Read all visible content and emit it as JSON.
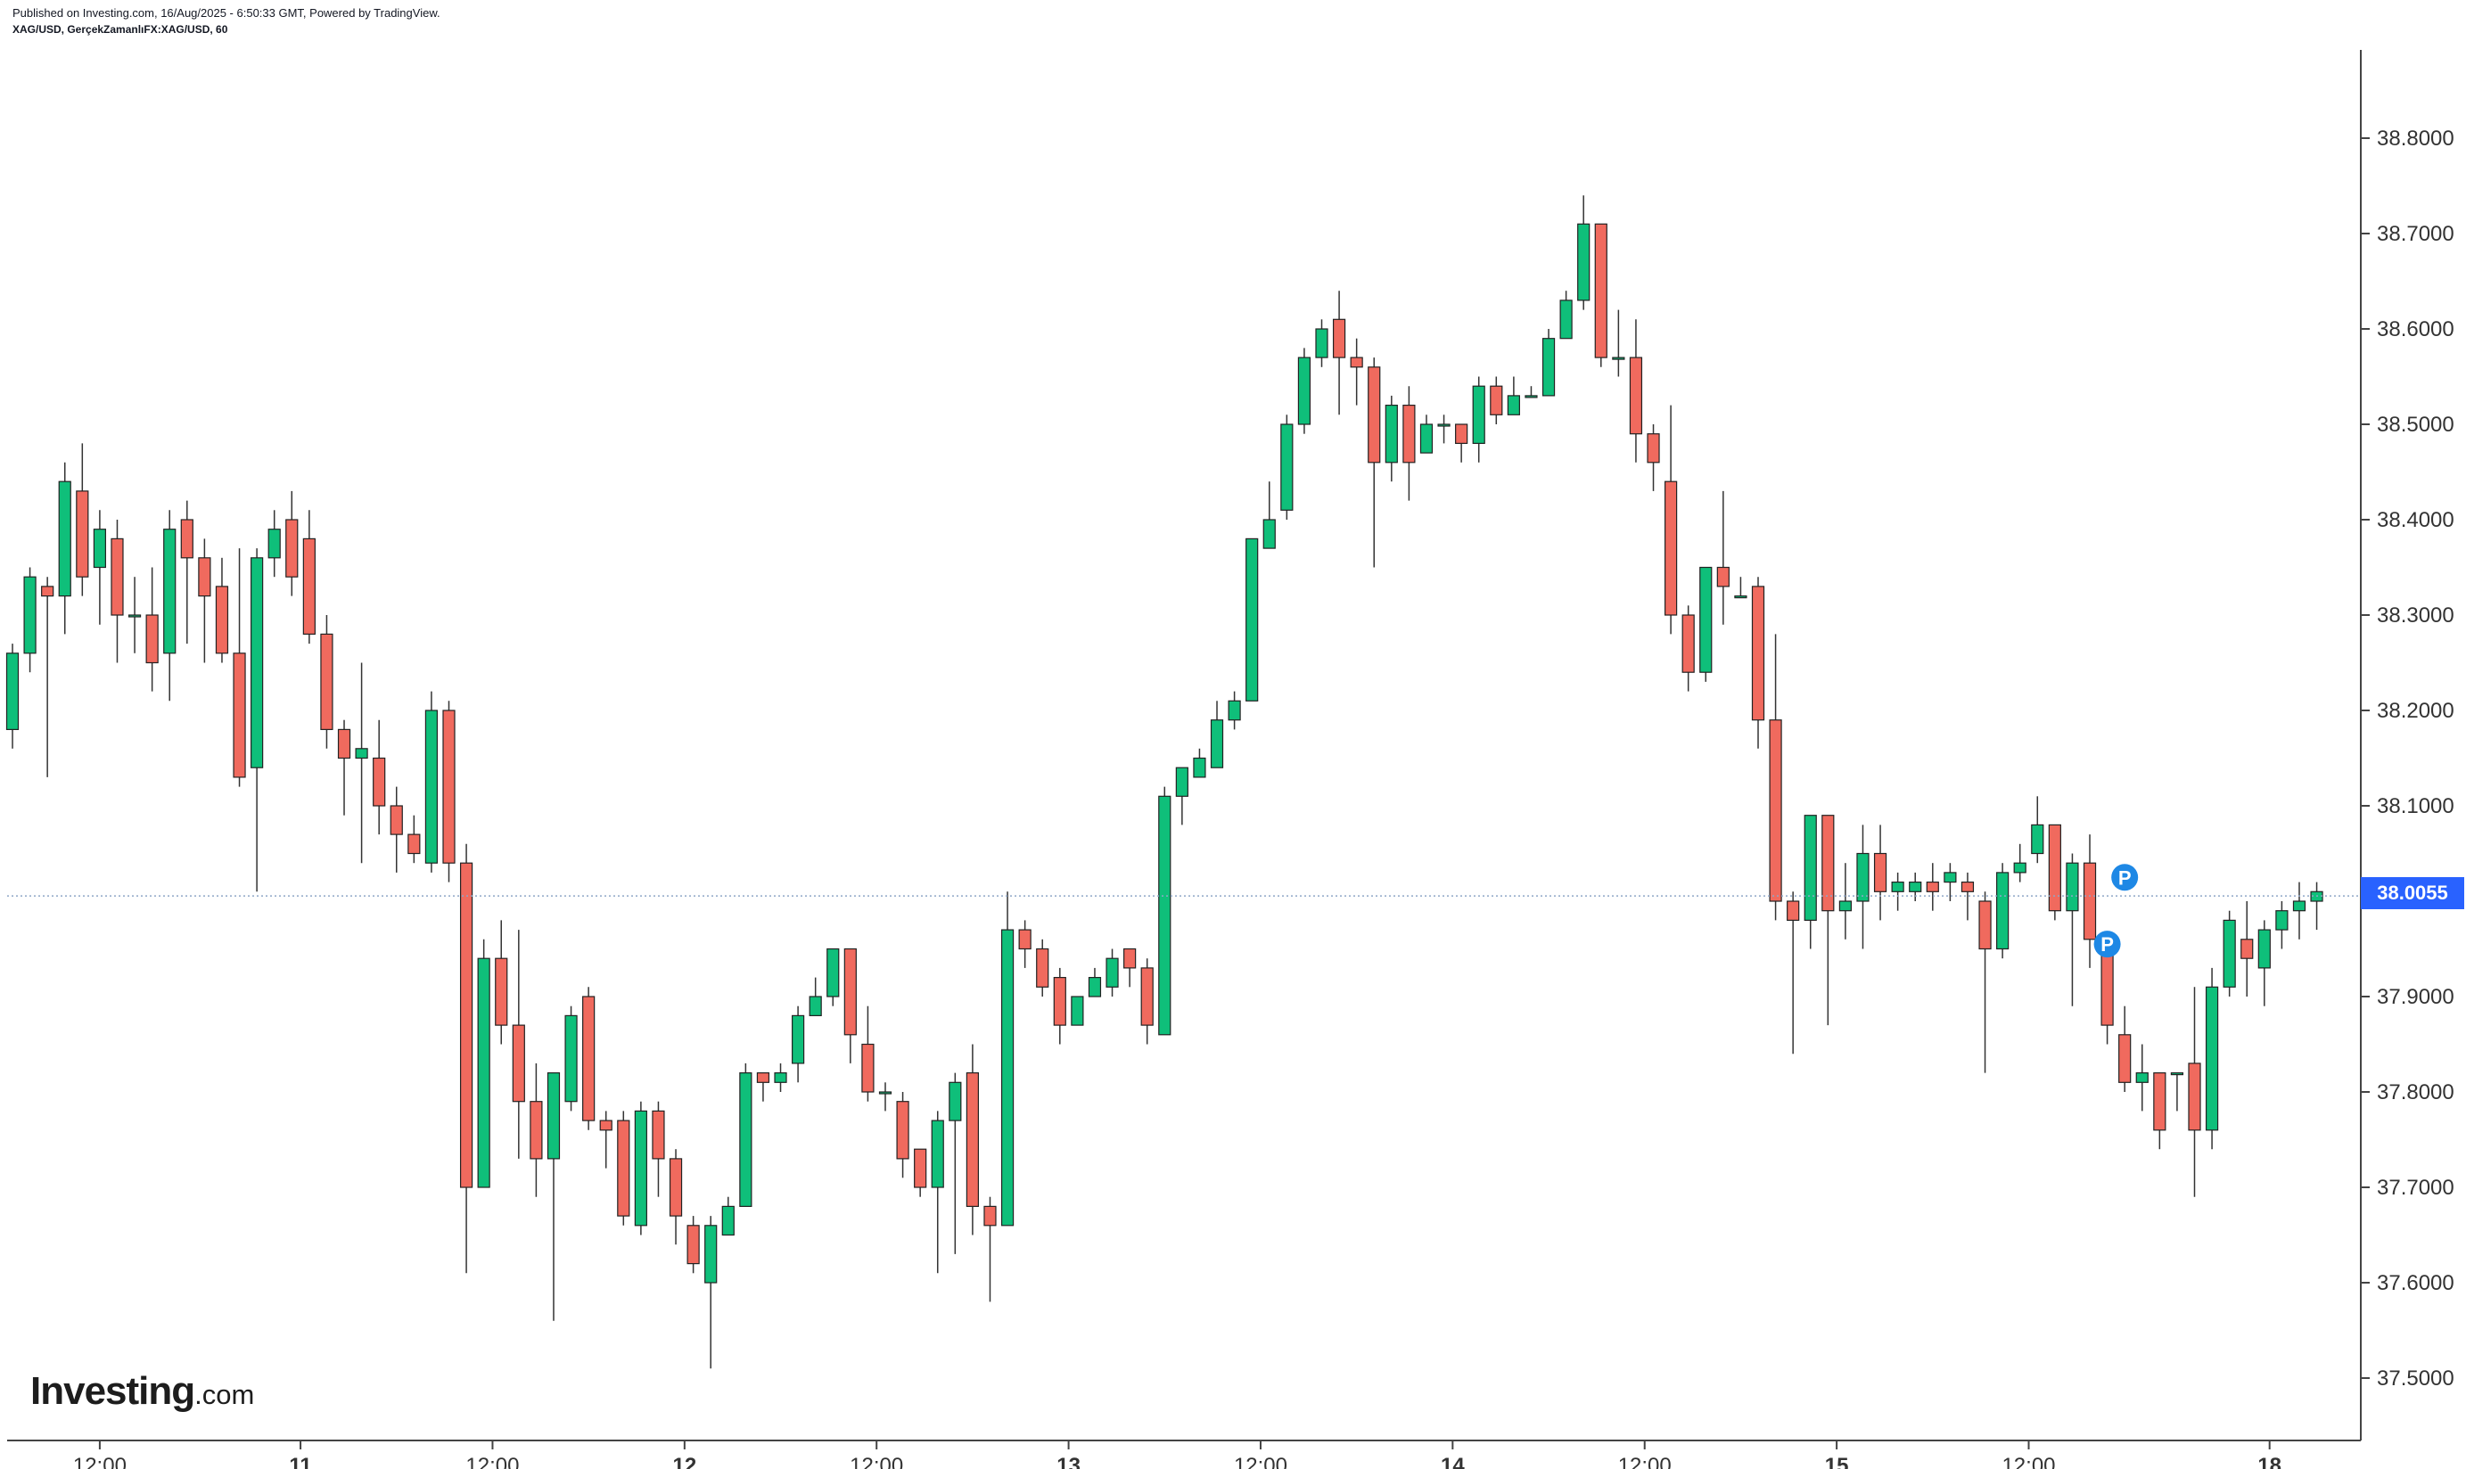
{
  "header": {
    "published": "Published on Investing.com, 16/Aug/2025 - 6:50:33 GMT, Powered by TradingView.",
    "symbol": "XAG/USD, GerçekZamanlıFX:XAG/USD, 60"
  },
  "logo": {
    "brand": "Investing",
    "domain": ".com"
  },
  "colors": {
    "up": "#089981",
    "upFill": "#0fbf7a",
    "down": "#e0493f",
    "downFill": "#f06a5e",
    "lastPrice": "#2962ff",
    "pivot": "#1e88e5"
  },
  "last_price": "38.0055",
  "chart_data": {
    "type": "candlestick",
    "title": "",
    "interval": "60",
    "ylim": [
      37.43,
      38.88
    ],
    "y_ticks": [
      "38.8000",
      "38.7000",
      "38.6000",
      "38.5000",
      "38.4000",
      "38.3000",
      "38.2000",
      "38.1000",
      "38.0000",
      "37.9000",
      "37.8000",
      "37.7000",
      "37.6000",
      "37.5000"
    ],
    "x_ticks": [
      {
        "label": "12:00",
        "bold": false,
        "idx": 5
      },
      {
        "label": "11",
        "bold": true,
        "idx": 16.5
      },
      {
        "label": "12:00",
        "bold": false,
        "idx": 27.5
      },
      {
        "label": "12",
        "bold": true,
        "idx": 38.5
      },
      {
        "label": "12:00",
        "bold": false,
        "idx": 49.5
      },
      {
        "label": "13",
        "bold": true,
        "idx": 60.5
      },
      {
        "label": "12:00",
        "bold": false,
        "idx": 71.5
      },
      {
        "label": "14",
        "bold": true,
        "idx": 82.5
      },
      {
        "label": "12:00",
        "bold": false,
        "idx": 93.5
      },
      {
        "label": "15",
        "bold": true,
        "idx": 104.5
      },
      {
        "label": "12:00",
        "bold": false,
        "idx": 115.5
      },
      {
        "label": "18",
        "bold": true,
        "idx": 129.3
      }
    ],
    "pivot_markers": [
      {
        "label": "P",
        "idx": 120,
        "price": 37.955
      },
      {
        "label": "P",
        "idx": 121,
        "price": 38.025
      }
    ],
    "candles": [
      [
        38.18,
        38.26,
        38.16,
        38.27
      ],
      [
        38.26,
        38.34,
        38.24,
        38.35
      ],
      [
        38.33,
        38.32,
        38.13,
        38.34
      ],
      [
        38.32,
        38.44,
        38.28,
        38.46
      ],
      [
        38.43,
        38.34,
        38.32,
        38.48
      ],
      [
        38.35,
        38.39,
        38.29,
        38.41
      ],
      [
        38.38,
        38.3,
        38.25,
        38.4
      ],
      [
        38.3,
        38.3,
        38.26,
        38.34
      ],
      [
        38.3,
        38.25,
        38.22,
        38.35
      ],
      [
        38.26,
        38.39,
        38.21,
        38.41
      ],
      [
        38.4,
        38.36,
        38.27,
        38.42
      ],
      [
        38.36,
        38.32,
        38.25,
        38.38
      ],
      [
        38.33,
        38.26,
        38.25,
        38.36
      ],
      [
        38.26,
        38.13,
        38.12,
        38.37
      ],
      [
        38.14,
        38.36,
        38.01,
        38.37
      ],
      [
        38.36,
        38.39,
        38.34,
        38.41
      ],
      [
        38.4,
        38.34,
        38.32,
        38.43
      ],
      [
        38.38,
        38.28,
        38.27,
        38.41
      ],
      [
        38.28,
        38.18,
        38.16,
        38.3
      ],
      [
        38.18,
        38.15,
        38.09,
        38.19
      ],
      [
        38.15,
        38.16,
        38.04,
        38.25
      ],
      [
        38.15,
        38.1,
        38.07,
        38.19
      ],
      [
        38.1,
        38.07,
        38.03,
        38.12
      ],
      [
        38.07,
        38.05,
        38.04,
        38.09
      ],
      [
        38.04,
        38.2,
        38.03,
        38.22
      ],
      [
        38.2,
        38.04,
        38.02,
        38.21
      ],
      [
        38.04,
        37.7,
        37.61,
        38.06
      ],
      [
        37.7,
        37.94,
        37.7,
        37.96
      ],
      [
        37.94,
        37.87,
        37.85,
        37.98
      ],
      [
        37.87,
        37.79,
        37.73,
        37.97
      ],
      [
        37.79,
        37.73,
        37.69,
        37.83
      ],
      [
        37.73,
        37.82,
        37.56,
        37.82
      ],
      [
        37.79,
        37.88,
        37.78,
        37.89
      ],
      [
        37.9,
        37.77,
        37.76,
        37.91
      ],
      [
        37.77,
        37.76,
        37.72,
        37.78
      ],
      [
        37.77,
        37.67,
        37.66,
        37.78
      ],
      [
        37.66,
        37.78,
        37.65,
        37.79
      ],
      [
        37.78,
        37.73,
        37.69,
        37.79
      ],
      [
        37.73,
        37.67,
        37.64,
        37.74
      ],
      [
        37.66,
        37.62,
        37.61,
        37.67
      ],
      [
        37.6,
        37.66,
        37.51,
        37.67
      ],
      [
        37.65,
        37.68,
        37.65,
        37.69
      ],
      [
        37.68,
        37.82,
        37.68,
        37.83
      ],
      [
        37.82,
        37.81,
        37.79,
        37.82
      ],
      [
        37.81,
        37.82,
        37.8,
        37.83
      ],
      [
        37.83,
        37.88,
        37.81,
        37.89
      ],
      [
        37.88,
        37.9,
        37.88,
        37.92
      ],
      [
        37.9,
        37.95,
        37.89,
        37.95
      ],
      [
        37.95,
        37.86,
        37.83,
        37.95
      ],
      [
        37.85,
        37.8,
        37.79,
        37.89
      ],
      [
        37.8,
        37.8,
        37.78,
        37.81
      ],
      [
        37.79,
        37.73,
        37.71,
        37.8
      ],
      [
        37.74,
        37.7,
        37.69,
        37.74
      ],
      [
        37.7,
        37.77,
        37.61,
        37.78
      ],
      [
        37.77,
        37.81,
        37.63,
        37.82
      ],
      [
        37.82,
        37.68,
        37.65,
        37.85
      ],
      [
        37.68,
        37.66,
        37.58,
        37.69
      ],
      [
        37.66,
        37.97,
        37.67,
        38.01
      ],
      [
        37.97,
        37.95,
        37.93,
        37.98
      ],
      [
        37.95,
        37.91,
        37.9,
        37.96
      ],
      [
        37.92,
        37.87,
        37.85,
        37.93
      ],
      [
        37.87,
        37.9,
        37.87,
        37.9
      ],
      [
        37.9,
        37.92,
        37.9,
        37.93
      ],
      [
        37.91,
        37.94,
        37.9,
        37.95
      ],
      [
        37.95,
        37.93,
        37.91,
        37.94
      ],
      [
        37.93,
        37.87,
        37.85,
        37.94
      ],
      [
        37.86,
        38.11,
        37.86,
        38.12
      ],
      [
        38.11,
        38.14,
        38.08,
        38.14
      ],
      [
        38.13,
        38.15,
        38.13,
        38.16
      ],
      [
        38.14,
        38.19,
        38.14,
        38.21
      ],
      [
        38.19,
        38.21,
        38.18,
        38.22
      ],
      [
        38.21,
        38.38,
        38.21,
        38.38
      ],
      [
        38.37,
        38.4,
        38.37,
        38.44
      ],
      [
        38.41,
        38.5,
        38.4,
        38.51
      ],
      [
        38.5,
        38.57,
        38.49,
        38.58
      ],
      [
        38.57,
        38.6,
        38.56,
        38.61
      ],
      [
        38.61,
        38.57,
        38.51,
        38.64
      ],
      [
        38.57,
        38.56,
        38.52,
        38.59
      ],
      [
        38.56,
        38.46,
        38.35,
        38.57
      ],
      [
        38.46,
        38.52,
        38.44,
        38.53
      ],
      [
        38.52,
        38.46,
        38.42,
        38.54
      ],
      [
        38.47,
        38.5,
        38.47,
        38.51
      ],
      [
        38.5,
        38.5,
        38.48,
        38.51
      ],
      [
        38.5,
        38.48,
        38.46,
        38.5
      ],
      [
        38.48,
        38.54,
        38.46,
        38.55
      ],
      [
        38.54,
        38.51,
        38.5,
        38.55
      ],
      [
        38.51,
        38.53,
        38.51,
        38.55
      ],
      [
        38.53,
        38.53,
        38.53,
        38.54
      ],
      [
        38.53,
        38.59,
        38.53,
        38.6
      ],
      [
        38.59,
        38.63,
        38.59,
        38.64
      ],
      [
        38.63,
        38.71,
        38.62,
        38.74
      ],
      [
        38.71,
        38.57,
        38.56,
        38.71
      ],
      [
        38.57,
        38.57,
        38.55,
        38.62
      ],
      [
        38.57,
        38.49,
        38.46,
        38.61
      ],
      [
        38.49,
        38.46,
        38.43,
        38.5
      ],
      [
        38.44,
        38.3,
        38.28,
        38.52
      ],
      [
        38.3,
        38.24,
        38.22,
        38.31
      ],
      [
        38.24,
        38.35,
        38.23,
        38.35
      ],
      [
        38.35,
        38.33,
        38.29,
        38.43
      ],
      [
        38.32,
        38.32,
        38.32,
        38.34
      ],
      [
        38.33,
        38.19,
        38.16,
        38.34
      ],
      [
        38.19,
        38.0,
        37.98,
        38.28
      ],
      [
        38.0,
        37.98,
        37.84,
        38.01
      ],
      [
        37.98,
        38.09,
        37.95,
        38.09
      ],
      [
        38.09,
        37.99,
        37.87,
        38.09
      ],
      [
        37.99,
        38.0,
        37.96,
        38.04
      ],
      [
        38.0,
        38.05,
        37.95,
        38.08
      ],
      [
        38.05,
        38.01,
        37.98,
        38.08
      ],
      [
        38.01,
        38.02,
        37.99,
        38.03
      ],
      [
        38.01,
        38.02,
        38.0,
        38.03
      ],
      [
        38.02,
        38.01,
        37.99,
        38.04
      ],
      [
        38.02,
        38.03,
        38.0,
        38.04
      ],
      [
        38.02,
        38.01,
        37.98,
        38.03
      ],
      [
        38.0,
        37.95,
        37.82,
        38.01
      ],
      [
        37.95,
        38.03,
        37.94,
        38.04
      ],
      [
        38.03,
        38.04,
        38.02,
        38.06
      ],
      [
        38.05,
        38.08,
        38.04,
        38.11
      ],
      [
        38.08,
        37.99,
        37.98,
        38.08
      ],
      [
        37.99,
        38.04,
        37.89,
        38.05
      ],
      [
        38.04,
        37.96,
        37.93,
        38.07
      ],
      [
        37.96,
        37.87,
        37.85,
        37.96
      ],
      [
        37.86,
        37.81,
        37.8,
        37.89
      ],
      [
        37.81,
        37.82,
        37.78,
        37.85
      ],
      [
        37.82,
        37.76,
        37.74,
        37.82
      ],
      [
        37.82,
        37.82,
        37.78,
        37.82
      ],
      [
        37.83,
        37.76,
        37.69,
        37.91
      ],
      [
        37.76,
        37.91,
        37.74,
        37.93
      ],
      [
        37.91,
        37.98,
        37.9,
        37.99
      ],
      [
        37.96,
        37.94,
        37.9,
        38.0
      ],
      [
        37.93,
        37.97,
        37.89,
        37.98
      ],
      [
        37.97,
        37.99,
        37.95,
        38.0
      ],
      [
        37.99,
        38.0,
        37.96,
        38.02
      ],
      [
        38.0,
        38.01,
        37.97,
        38.02
      ]
    ]
  }
}
